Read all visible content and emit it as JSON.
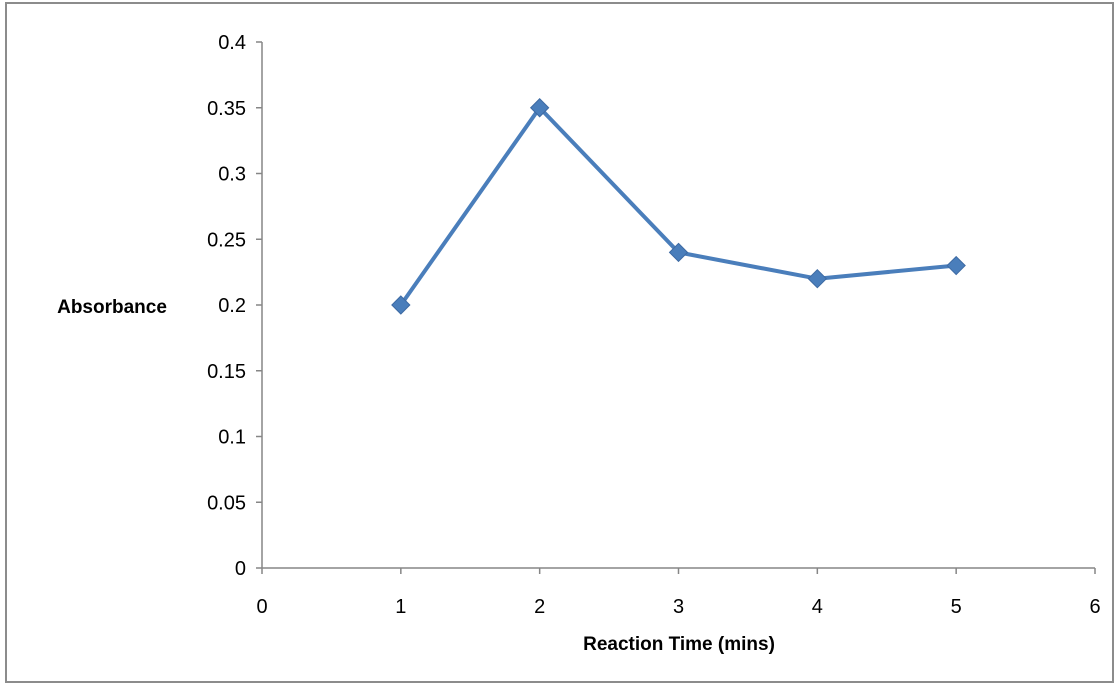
{
  "chart_data": {
    "type": "line",
    "title": "",
    "xlabel": "Reaction Time (mins)",
    "ylabel": "Absorbance",
    "xlim": [
      0,
      6
    ],
    "ylim": [
      0,
      0.4
    ],
    "x_ticks": [
      "0",
      "1",
      "2",
      "3",
      "4",
      "5",
      "6"
    ],
    "y_ticks": [
      "0",
      "0.05",
      "0.1",
      "0.15",
      "0.2",
      "0.25",
      "0.3",
      "0.35",
      "0.4"
    ],
    "grid": false,
    "legend": "none",
    "marker": "diamond",
    "color": "#4a7ebb",
    "series": [
      {
        "x": [
          1,
          2,
          3,
          4,
          5
        ],
        "y": [
          0.2,
          0.35,
          0.24,
          0.22,
          0.23
        ]
      }
    ]
  }
}
